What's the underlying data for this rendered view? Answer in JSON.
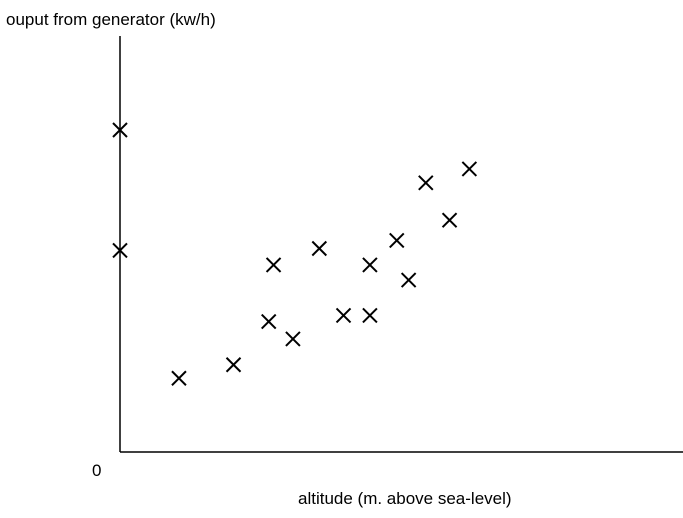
{
  "chart_data": {
    "type": "scatter",
    "title": "",
    "ylabel": "ouput from generator (kw/h)",
    "xlabel": "altitude (m. above sea-level)",
    "origin_label": "0",
    "xlim": [
      0,
      100
    ],
    "ylim": [
      0,
      100
    ],
    "grid": false,
    "legend": "none",
    "marker": "x",
    "series": [
      {
        "points": [
          {
            "x": 0.0,
            "y": 100.0
          },
          {
            "x": 0.0,
            "y": 62.6
          },
          {
            "x": 13.4,
            "y": 22.9
          },
          {
            "x": 25.8,
            "y": 27.1
          },
          {
            "x": 33.8,
            "y": 40.5
          },
          {
            "x": 34.9,
            "y": 58.1
          },
          {
            "x": 39.3,
            "y": 35.1
          },
          {
            "x": 45.3,
            "y": 63.2
          },
          {
            "x": 50.8,
            "y": 42.4
          },
          {
            "x": 56.8,
            "y": 42.4
          },
          {
            "x": 56.8,
            "y": 58.1
          },
          {
            "x": 62.9,
            "y": 65.7
          },
          {
            "x": 65.6,
            "y": 53.4
          },
          {
            "x": 69.5,
            "y": 83.6
          },
          {
            "x": 74.9,
            "y": 72.0
          },
          {
            "x": 79.4,
            "y": 87.9
          }
        ]
      }
    ],
    "colors": {
      "axis": "#000000",
      "marker": "#000000"
    }
  }
}
